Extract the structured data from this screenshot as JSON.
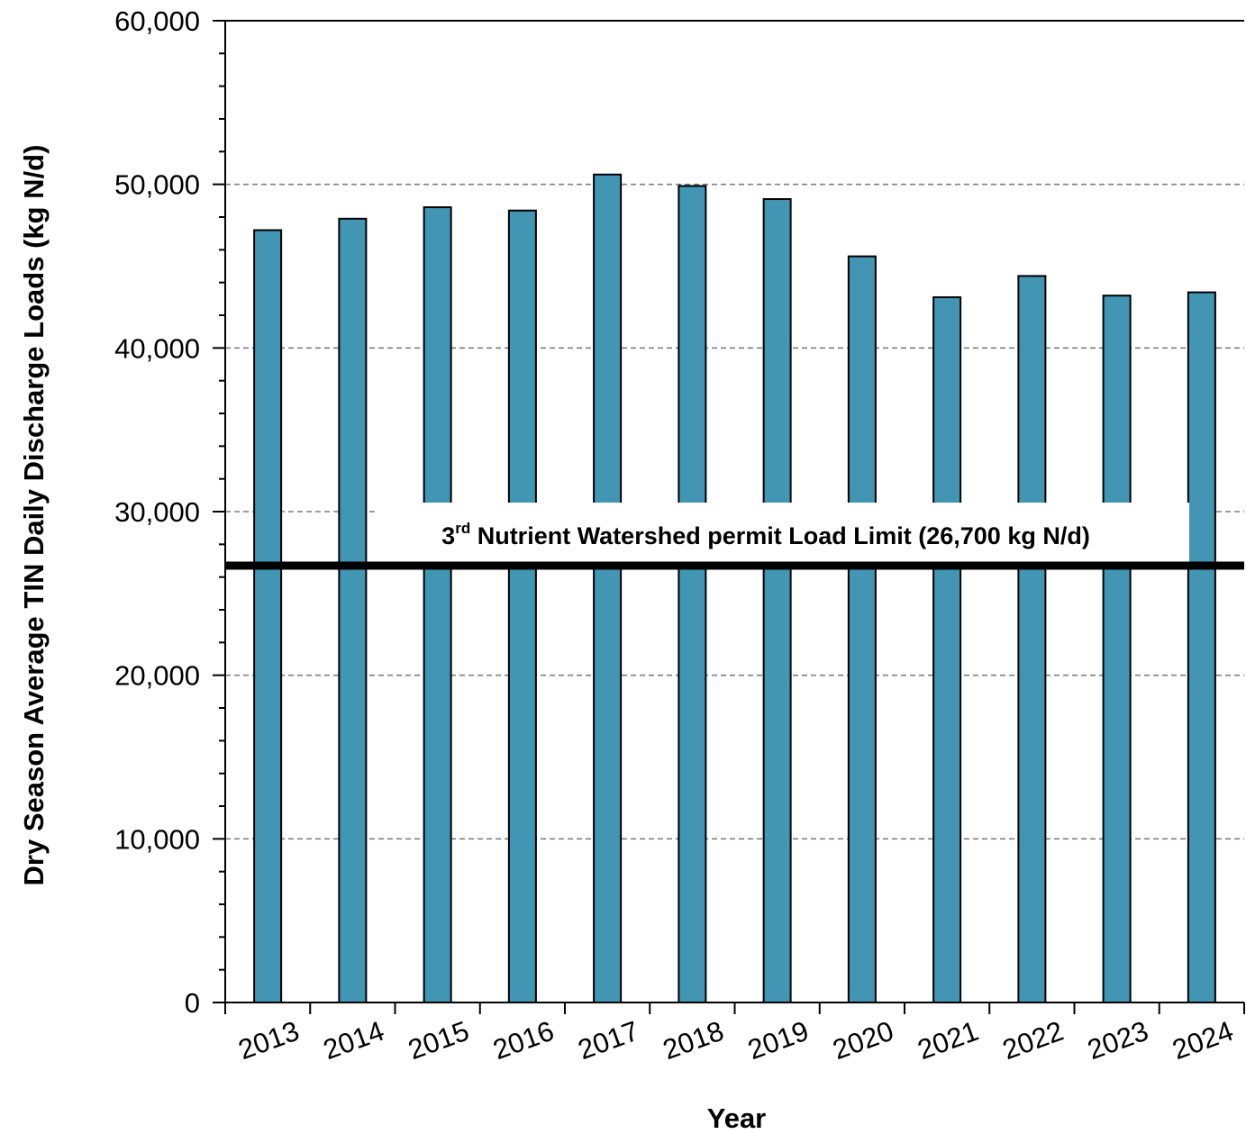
{
  "chart_data": {
    "type": "bar",
    "title": "",
    "xlabel": "Year",
    "ylabel": "Dry Season Average TIN Daily Discharge Loads (kg N/d)",
    "categories": [
      "2013",
      "2014",
      "2015",
      "2016",
      "2017",
      "2018",
      "2019",
      "2020",
      "2021",
      "2022",
      "2023",
      "2024"
    ],
    "values": [
      47200,
      47900,
      48600,
      48400,
      50600,
      49900,
      49100,
      45600,
      43100,
      44400,
      43200,
      43400
    ],
    "ylim": [
      0,
      60000
    ],
    "yticks": [
      0,
      10000,
      20000,
      30000,
      40000,
      50000,
      60000
    ],
    "ytick_labels": [
      "0",
      "10,000",
      "20,000",
      "30,000",
      "40,000",
      "50,000",
      "60,000"
    ],
    "grid": "horizontal dashed",
    "bar_color": "#4296B4",
    "reference_line": {
      "value": 26700,
      "label_num": "3",
      "label_sup": "rd",
      "label_rest": " Nutrient Watershed permit Load Limit (26,700 kg N/d)"
    }
  }
}
